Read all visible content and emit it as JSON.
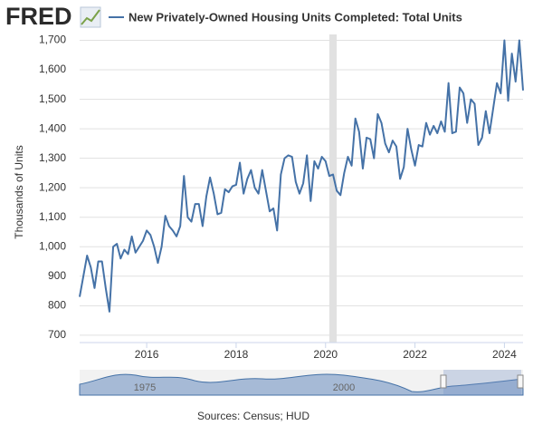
{
  "chart_data": {
    "type": "line",
    "logo_text": "FRED",
    "title": "New Privately-Owned Housing Units Completed: Total Units",
    "y_label": "Thousands of Units",
    "source": "Sources: Census; HUD",
    "navigator_labels": [
      "1975",
      "2000"
    ],
    "recessions": [
      [
        "2020-02",
        "2020-04"
      ]
    ],
    "grid": true,
    "x": [
      "2014-07",
      "2014-08",
      "2014-09",
      "2014-10",
      "2014-11",
      "2014-12",
      "2015-01",
      "2015-02",
      "2015-03",
      "2015-04",
      "2015-05",
      "2015-06",
      "2015-07",
      "2015-08",
      "2015-09",
      "2015-10",
      "2015-11",
      "2015-12",
      "2016-01",
      "2016-02",
      "2016-03",
      "2016-04",
      "2016-05",
      "2016-06",
      "2016-07",
      "2016-08",
      "2016-09",
      "2016-10",
      "2016-11",
      "2016-12",
      "2017-01",
      "2017-02",
      "2017-03",
      "2017-04",
      "2017-05",
      "2017-06",
      "2017-07",
      "2017-08",
      "2017-09",
      "2017-10",
      "2017-11",
      "2017-12",
      "2018-01",
      "2018-02",
      "2018-03",
      "2018-04",
      "2018-05",
      "2018-06",
      "2018-07",
      "2018-08",
      "2018-09",
      "2018-10",
      "2018-11",
      "2018-12",
      "2019-01",
      "2019-02",
      "2019-03",
      "2019-04",
      "2019-05",
      "2019-06",
      "2019-07",
      "2019-08",
      "2019-09",
      "2019-10",
      "2019-11",
      "2019-12",
      "2020-01",
      "2020-02",
      "2020-03",
      "2020-04",
      "2020-05",
      "2020-06",
      "2020-07",
      "2020-08",
      "2020-09",
      "2020-10",
      "2020-11",
      "2020-12",
      "2021-01",
      "2021-02",
      "2021-03",
      "2021-04",
      "2021-05",
      "2021-06",
      "2021-07",
      "2021-08",
      "2021-09",
      "2021-10",
      "2021-11",
      "2021-12",
      "2022-01",
      "2022-02",
      "2022-03",
      "2022-04",
      "2022-05",
      "2022-06",
      "2022-07",
      "2022-08",
      "2022-09",
      "2022-10",
      "2022-11",
      "2022-12",
      "2023-01",
      "2023-02",
      "2023-03",
      "2023-04",
      "2023-05",
      "2023-06",
      "2023-07",
      "2023-08",
      "2023-09",
      "2023-10",
      "2023-11",
      "2023-12",
      "2024-01",
      "2024-02",
      "2024-03",
      "2024-04",
      "2024-05",
      "2024-06"
    ],
    "series": [
      {
        "name": "New Privately-Owned Housing Units Completed: Total Units",
        "color": "#4572a7",
        "values": [
          830,
          900,
          970,
          930,
          860,
          950,
          950,
          860,
          780,
          1000,
          1010,
          960,
          990,
          975,
          1035,
          980,
          1000,
          1020,
          1055,
          1040,
          1000,
          945,
          1000,
          1105,
          1070,
          1055,
          1035,
          1070,
          1240,
          1100,
          1085,
          1145,
          1145,
          1070,
          1170,
          1235,
          1180,
          1110,
          1115,
          1195,
          1185,
          1205,
          1210,
          1285,
          1180,
          1230,
          1260,
          1200,
          1180,
          1260,
          1190,
          1120,
          1130,
          1055,
          1245,
          1300,
          1310,
          1305,
          1220,
          1180,
          1215,
          1310,
          1155,
          1290,
          1265,
          1305,
          1290,
          1240,
          1245,
          1190,
          1175,
          1250,
          1305,
          1275,
          1435,
          1390,
          1265,
          1370,
          1365,
          1300,
          1450,
          1420,
          1350,
          1320,
          1360,
          1340,
          1230,
          1270,
          1400,
          1330,
          1275,
          1345,
          1340,
          1420,
          1380,
          1410,
          1385,
          1425,
          1390,
          1555,
          1385,
          1390,
          1540,
          1520,
          1420,
          1500,
          1485,
          1345,
          1370,
          1460,
          1385,
          1470,
          1555,
          1520,
          1700,
          1495,
          1655,
          1560,
          1700,
          1530
        ]
      }
    ],
    "xlim": [
      "2014-07",
      "2024-06"
    ],
    "xticks": [
      {
        "value": "2016-01",
        "label": "2016"
      },
      {
        "value": "2018-01",
        "label": "2018"
      },
      {
        "value": "2020-01",
        "label": "2020"
      },
      {
        "value": "2022-01",
        "label": "2022"
      },
      {
        "value": "2024-01",
        "label": "2024"
      }
    ],
    "ylim": [
      675,
      1720
    ],
    "yticks": [
      700,
      800,
      900,
      {
        "value": 1000,
        "label": "1,000"
      },
      {
        "value": 1100,
        "label": "1,100"
      },
      {
        "value": 1200,
        "label": "1,200"
      },
      {
        "value": 1300,
        "label": "1,300"
      },
      {
        "value": 1400,
        "label": "1,400"
      },
      {
        "value": 1500,
        "label": "1,500"
      },
      {
        "value": 1600,
        "label": "1,600"
      },
      {
        "value": 1700,
        "label": "1,700"
      }
    ]
  }
}
